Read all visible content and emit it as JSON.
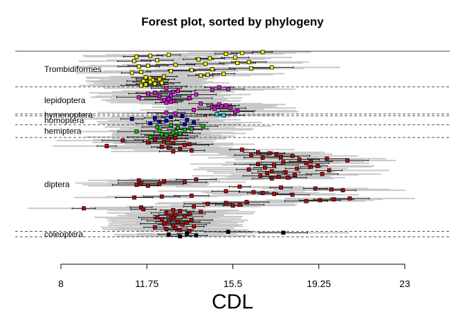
{
  "chart_data": {
    "type": "scatter",
    "title": "Forest plot, sorted by phylogeny",
    "xlabel": "CDL",
    "ylabel": "",
    "xlim": [
      8,
      23
    ],
    "x_ticks": [
      8,
      11.75,
      15.5,
      19.25,
      23
    ],
    "x_tick_labels": [
      "8",
      "11.75",
      "15.5",
      "19.25",
      "23"
    ],
    "grid": false,
    "groups": [
      {
        "name": "Trombidiformes",
        "color": "#ffff00"
      },
      {
        "name": "lepidoptera",
        "color": "#ff00ff"
      },
      {
        "name": "hymenoptera",
        "color": "#00ffff"
      },
      {
        "name": "homoptera",
        "color": "#0000cd"
      },
      {
        "name": "hemiptera",
        "color": "#00cd00"
      },
      {
        "name": "diptera",
        "color": "#cd0000"
      },
      {
        "name": "coleoptera",
        "color": "#000000"
      }
    ],
    "series": [
      {
        "group": "Trombidiformes",
        "values": [
          16.8,
          15.9,
          15.2,
          12.7,
          11.9,
          11.3,
          15.6,
          14.5,
          14.0,
          12.2,
          11.2,
          16.2,
          15.7,
          14.3,
          13.0,
          11.8,
          11.4,
          17.2,
          16.3,
          14.6,
          13.7,
          12.8,
          11.5,
          11.1,
          15.1,
          14.4,
          14.1,
          12.5,
          11.7,
          11.9,
          12.3,
          12.0,
          11.6,
          11.9,
          12.4,
          12.1,
          11.7,
          11.5,
          12.6
        ]
      },
      {
        "group": "lepidoptera",
        "values": [
          14.9,
          12.6,
          15.3,
          14.6,
          13.1,
          12.9,
          12.1,
          11.8,
          13.9,
          12.8,
          12.3,
          11.4,
          13.6,
          12.7,
          12.5,
          12.9,
          12.8,
          12.6,
          14.1,
          14.9,
          15.2,
          15.0,
          14.6,
          15.4,
          14.7,
          13.8,
          15.7,
          15.6,
          12.6,
          13.0
        ]
      },
      {
        "group": "hymenoptera",
        "values": [
          14.8,
          15.1
        ]
      },
      {
        "group": "homoptera",
        "values": [
          13.3,
          12.8,
          12.1,
          11.1,
          13.5,
          12.6,
          12.3,
          13.8,
          11.9,
          13.4
        ]
      },
      {
        "group": "hemiptera",
        "values": [
          12.8,
          14.2,
          12.2,
          13.1,
          13.7,
          13.4,
          12.3,
          11.3,
          12.9,
          13.2,
          12.4,
          12.6,
          13.0,
          11.9
        ]
      },
      {
        "group": "diptera",
        "values": [
          13.0,
          12.7,
          12.1,
          10.7,
          12.5,
          11.8,
          12.9,
          13.6,
          13.4,
          10.0,
          12.4,
          12.7,
          13.2,
          15.9,
          13.7,
          12.9,
          16.6,
          17.1,
          17.4,
          16.3,
          18.1,
          17.6,
          16.8,
          19.6,
          18.4,
          20.5,
          18.9,
          17.7,
          18.7,
          16.6,
          17.3,
          19.2,
          18.9,
          16.9,
          18.3,
          16.2,
          19.7,
          17.2,
          17.8,
          17.0,
          19.4,
          18.2,
          16.7,
          17.5,
          17.9,
          17.2,
          13.9,
          11.4,
          12.5,
          13.4,
          11.5,
          12.3,
          11.3,
          11.8,
          15.8,
          17.6,
          19.1,
          19.8,
          20.3,
          15.2,
          16.4,
          16.8,
          17.3,
          18.1,
          13.7,
          12.4,
          11.2,
          20.6,
          19.9,
          19.3,
          18.7,
          16.1,
          15.2,
          14.4,
          15.8,
          15.5,
          13.8,
          11.5,
          9.0,
          11.6,
          12.9,
          13.2,
          14.1,
          12.6,
          13.6,
          13.0,
          12.8,
          13.4,
          12.2,
          12.9,
          12.4,
          13.7,
          12.7,
          13.1,
          13.5,
          12.5,
          13.3,
          12.9,
          13.8,
          12.1,
          13.0,
          12.6,
          13.2,
          13.6
        ]
      },
      {
        "group": "coleoptera",
        "values": [
          15.3,
          17.7,
          13.5,
          12.7,
          13.9,
          13.2
        ]
      }
    ]
  }
}
